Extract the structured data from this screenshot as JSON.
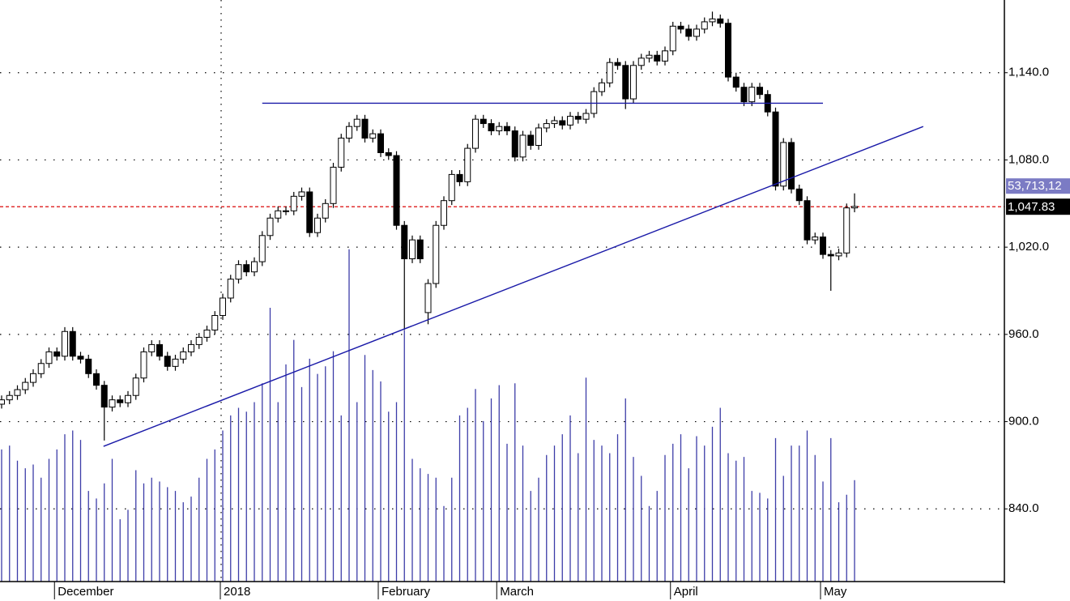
{
  "chart_data": {
    "type": "candlestick",
    "categories": [
      null,
      null,
      null,
      null,
      null,
      null,
      null,
      "December",
      null,
      null,
      null,
      null,
      null,
      null,
      null,
      null,
      null,
      null,
      null,
      null,
      null,
      null,
      null,
      null,
      null,
      null,
      null,
      null,
      "2018",
      null,
      null,
      null,
      null,
      null,
      null,
      null,
      null,
      null,
      null,
      null,
      null,
      null,
      null,
      null,
      null,
      null,
      null,
      null,
      "February",
      null,
      null,
      null,
      null,
      null,
      null,
      null,
      null,
      null,
      null,
      null,
      null,
      null,
      null,
      "March",
      null,
      null,
      null,
      null,
      null,
      null,
      null,
      null,
      null,
      null,
      null,
      null,
      null,
      null,
      null,
      null,
      null,
      null,
      null,
      null,
      null,
      "April",
      null,
      null,
      null,
      null,
      null,
      null,
      null,
      null,
      null,
      null,
      null,
      null,
      null,
      null,
      null,
      null,
      null,
      null,
      "May",
      null,
      null,
      null,
      null
    ],
    "open": [
      912,
      915,
      918,
      922,
      927,
      933,
      940,
      948,
      945,
      962,
      945,
      943,
      933,
      925,
      910,
      915,
      913,
      918,
      930,
      948,
      953,
      945,
      938,
      943,
      948,
      953,
      958,
      963,
      973,
      985,
      998,
      1008,
      1003,
      1010,
      1028,
      1040,
      1045,
      1045,
      1055,
      1058,
      1030,
      1040,
      1050,
      1075,
      1095,
      1103,
      1108,
      1095,
      1098,
      1085,
      1083,
      1035,
      1012,
      1025,
      975,
      995,
      1035,
      1052,
      1070,
      1065,
      1088,
      1108,
      1105,
      1100,
      1103,
      1100,
      1082,
      1097,
      1090,
      1102,
      1105,
      1107,
      1104,
      1110,
      1108,
      1112,
      1127,
      1133,
      1147,
      1145,
      1122,
      1145,
      1150,
      1152,
      1148,
      1155,
      1172,
      1170,
      1165,
      1170,
      1175,
      1177,
      1174,
      1137,
      1130,
      1120,
      1130,
      1125,
      1113,
      1062,
      1092,
      1060,
      1052,
      1025,
      1027,
      1015,
      1014,
      1016,
      1047
    ],
    "high": [
      918,
      921,
      925,
      930,
      936,
      943,
      951,
      951,
      965,
      965,
      948,
      946,
      936,
      928,
      918,
      918,
      921,
      933,
      951,
      956,
      956,
      948,
      946,
      951,
      956,
      961,
      966,
      976,
      988,
      1001,
      1011,
      1011,
      1013,
      1031,
      1043,
      1048,
      1048,
      1058,
      1061,
      1061,
      1043,
      1053,
      1078,
      1098,
      1106,
      1111,
      1111,
      1101,
      1101,
      1088,
      1086,
      1038,
      1028,
      1028,
      998,
      1038,
      1055,
      1073,
      1073,
      1091,
      1111,
      1111,
      1108,
      1106,
      1106,
      1103,
      1100,
      1100,
      1105,
      1108,
      1110,
      1110,
      1113,
      1113,
      1115,
      1130,
      1136,
      1150,
      1150,
      1148,
      1148,
      1153,
      1155,
      1155,
      1158,
      1175,
      1175,
      1173,
      1173,
      1178,
      1182,
      1180,
      1177,
      1140,
      1133,
      1133,
      1133,
      1128,
      1116,
      1095,
      1095,
      1063,
      1055,
      1030,
      1030,
      1018,
      1019,
      1050,
      1057
    ],
    "low": [
      909,
      912,
      915,
      919,
      924,
      930,
      937,
      942,
      942,
      942,
      940,
      930,
      922,
      887,
      907,
      910,
      910,
      915,
      927,
      945,
      942,
      935,
      935,
      940,
      945,
      950,
      955,
      960,
      970,
      982,
      995,
      1000,
      1000,
      1007,
      1025,
      1037,
      1042,
      1042,
      1052,
      1027,
      1027,
      1037,
      1047,
      1072,
      1092,
      1100,
      1092,
      1092,
      1082,
      1080,
      1032,
      963,
      1009,
      1009,
      967,
      992,
      1032,
      1049,
      1062,
      1062,
      1085,
      1102,
      1097,
      1097,
      1097,
      1079,
      1079,
      1087,
      1087,
      1099,
      1102,
      1101,
      1101,
      1105,
      1105,
      1109,
      1124,
      1130,
      1142,
      1115,
      1119,
      1142,
      1147,
      1145,
      1145,
      1152,
      1167,
      1162,
      1162,
      1167,
      1172,
      1171,
      1134,
      1127,
      1117,
      1117,
      1122,
      1110,
      1059,
      1059,
      1057,
      1049,
      1022,
      1022,
      1012,
      990,
      1011,
      1013,
      1044
    ],
    "close": [
      915,
      918,
      922,
      927,
      933,
      940,
      948,
      945,
      962,
      945,
      943,
      933,
      925,
      910,
      915,
      913,
      918,
      930,
      948,
      953,
      945,
      938,
      943,
      948,
      953,
      958,
      963,
      973,
      985,
      998,
      1008,
      1003,
      1010,
      1028,
      1040,
      1045,
      1045,
      1055,
      1058,
      1030,
      1040,
      1050,
      1075,
      1095,
      1103,
      1108,
      1095,
      1098,
      1085,
      1083,
      1035,
      1012,
      1025,
      1012,
      995,
      1035,
      1052,
      1070,
      1065,
      1088,
      1108,
      1105,
      1100,
      1103,
      1100,
      1082,
      1097,
      1090,
      1102,
      1105,
      1107,
      1104,
      1110,
      1108,
      1112,
      1127,
      1133,
      1147,
      1145,
      1122,
      1145,
      1150,
      1152,
      1148,
      1155,
      1172,
      1170,
      1165,
      1170,
      1175,
      1177,
      1174,
      1137,
      1130,
      1120,
      1130,
      1125,
      1113,
      1062,
      1092,
      1060,
      1052,
      1025,
      1027,
      1015,
      1014,
      1016,
      1047,
      1048
    ],
    "volume": [
      70,
      72,
      64,
      60,
      62,
      55,
      65,
      70,
      78,
      80,
      75,
      48,
      44,
      52,
      65,
      33,
      38,
      59,
      52,
      55,
      53,
      50,
      48,
      42,
      45,
      55,
      65,
      70,
      80,
      88,
      92,
      90,
      95,
      105,
      145,
      95,
      115,
      128,
      103,
      118,
      110,
      114,
      122,
      88,
      176,
      95,
      120,
      112,
      106,
      90,
      95,
      133,
      65,
      60,
      57,
      55,
      40,
      55,
      88,
      92,
      102,
      85,
      97,
      104,
      73,
      105,
      72,
      48,
      55,
      67,
      72,
      78,
      88,
      68,
      108,
      75,
      72,
      68,
      78,
      97,
      66,
      56,
      40,
      48,
      67,
      73,
      78,
      60,
      77,
      72,
      82,
      92,
      68,
      64,
      66,
      48,
      47,
      44,
      76,
      56,
      72,
      72,
      80,
      67,
      53,
      76,
      42,
      46,
      53.71312
    ],
    "volume_label": "53,713,12",
    "volume_color": "#3c3ca8",
    "vlim": [
      0,
      308
    ],
    "ylim": [
      790,
      1190
    ],
    "yticks": [
      {
        "value": 840,
        "label": "840.0"
      },
      {
        "value": 900,
        "label": "900.0"
      },
      {
        "value": 960,
        "label": "960.0"
      },
      {
        "value": 1020,
        "label": "1,020.0"
      },
      {
        "value": 1080,
        "label": "1,080.0"
      },
      {
        "value": 1140,
        "label": "1,140.0"
      }
    ],
    "grid": true,
    "last_price": {
      "value": 1047.83,
      "label": "1,047.83"
    },
    "last_price_color": "#e03030",
    "trend_lines": [
      {
        "color": "#1a1aa8",
        "x": [
          33,
          104
        ],
        "y": [
          1119,
          1119
        ]
      },
      {
        "color": "#1a1aa8",
        "x": [
          12.9,
          116.7
        ],
        "y": [
          883,
          1103
        ]
      }
    ],
    "year_divider": 28
  }
}
